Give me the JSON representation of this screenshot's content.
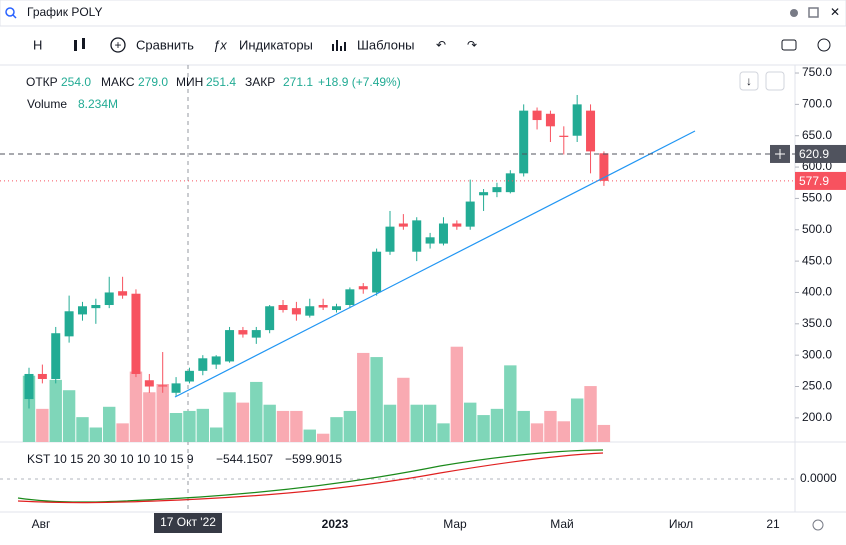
{
  "header": {
    "search": "График POLY"
  },
  "toolbar": {
    "interval": "H",
    "compare": "Сравнить",
    "indicators": "Индикаторы",
    "templates": "Шаблоны"
  },
  "legend": {
    "open_label": "ОТКР",
    "open": "254.0",
    "high_label": "МАКС",
    "high": "279.0",
    "low_label": "МИН",
    "low": "251.4",
    "close_label": "ЗАКР",
    "close": "271.1",
    "change": "+18.9 (+7.49%)",
    "volume_label": "Volume",
    "volume": "8.234M"
  },
  "kst": {
    "label": "KST 10 15 20 30 10 10 10 15 9",
    "value1": "−544.1507",
    "value2": "−599.9015",
    "tick": "0.0000"
  },
  "x_axis": {
    "labels": [
      "Авг",
      "2023",
      "Мар",
      "Май",
      "Июл",
      "21"
    ],
    "crosshair": "17 Окт '22"
  },
  "chart_data": {
    "type": "candlestick",
    "open": [
      230,
      270,
      262,
      330,
      365,
      375,
      380,
      402,
      398,
      260,
      252,
      240,
      258,
      275,
      285,
      290,
      340,
      328,
      340,
      380,
      375,
      363,
      380,
      372,
      380,
      410,
      400,
      465,
      510,
      465,
      478,
      478,
      510,
      505,
      555,
      560,
      560,
      590,
      690,
      685,
      650,
      650,
      690,
      622
    ],
    "high": [
      280,
      285,
      345,
      395,
      385,
      390,
      425,
      425,
      405,
      270,
      305,
      265,
      280,
      300,
      300,
      345,
      345,
      345,
      380,
      388,
      385,
      390,
      390,
      382,
      408,
      415,
      470,
      530,
      525,
      520,
      495,
      520,
      515,
      580,
      565,
      575,
      595,
      700,
      695,
      690,
      665,
      715,
      700,
      625
    ],
    "low": [
      215,
      255,
      255,
      320,
      355,
      350,
      375,
      390,
      265,
      240,
      240,
      235,
      255,
      268,
      278,
      288,
      328,
      318,
      335,
      368,
      355,
      360,
      372,
      368,
      375,
      398,
      395,
      460,
      500,
      450,
      470,
      475,
      500,
      500,
      530,
      552,
      558,
      585,
      660,
      640,
      620,
      640,
      590,
      570
    ],
    "close": [
      270,
      262,
      335,
      370,
      378,
      380,
      400,
      395,
      270,
      250,
      250,
      255,
      275,
      295,
      298,
      340,
      333,
      340,
      378,
      372,
      365,
      378,
      376,
      378,
      405,
      405,
      465,
      505,
      505,
      515,
      488,
      510,
      505,
      545,
      560,
      568,
      590,
      690,
      675,
      665,
      648,
      700,
      625,
      578
    ],
    "volume": [
      32,
      16,
      30,
      25,
      12,
      7,
      17,
      9,
      34,
      24,
      28,
      14,
      15,
      16,
      7,
      24,
      19,
      29,
      18,
      15,
      15,
      6,
      4,
      12,
      15,
      43,
      41,
      18,
      31,
      18,
      18,
      9,
      46,
      19,
      13,
      16,
      37,
      15,
      9,
      15,
      10,
      21,
      27,
      8.234
    ],
    "ylim": [
      161.5,
      762.8
    ],
    "volume_lim": [
      0,
      182
    ],
    "yticks": [
      {
        "value": 200,
        "label": "200.0"
      },
      {
        "value": 250,
        "label": "250.0"
      },
      {
        "value": 300,
        "label": "300.0"
      },
      {
        "value": 350,
        "label": "350.0"
      },
      {
        "value": 400,
        "label": "400.0"
      },
      {
        "value": 450,
        "label": "450.0"
      },
      {
        "value": 500,
        "label": "500.0"
      },
      {
        "value": 550,
        "label": "550.0"
      },
      {
        "value": 600,
        "label": "600.0"
      },
      {
        "value": 650,
        "label": "650.0"
      },
      {
        "value": 700,
        "label": "700.0"
      },
      {
        "value": 750,
        "label": "750.0"
      }
    ],
    "price_lines": [
      {
        "value": 620.9,
        "label": "620.9",
        "color": "#50535e"
      },
      {
        "value": 577.9,
        "label": "577.9",
        "color": "#f7525f"
      }
    ],
    "up_color": "#22ab94",
    "down_color": "#f7525f",
    "up_volume_color": "#7fd6b9",
    "down_volume_color": "#f9aab2"
  }
}
